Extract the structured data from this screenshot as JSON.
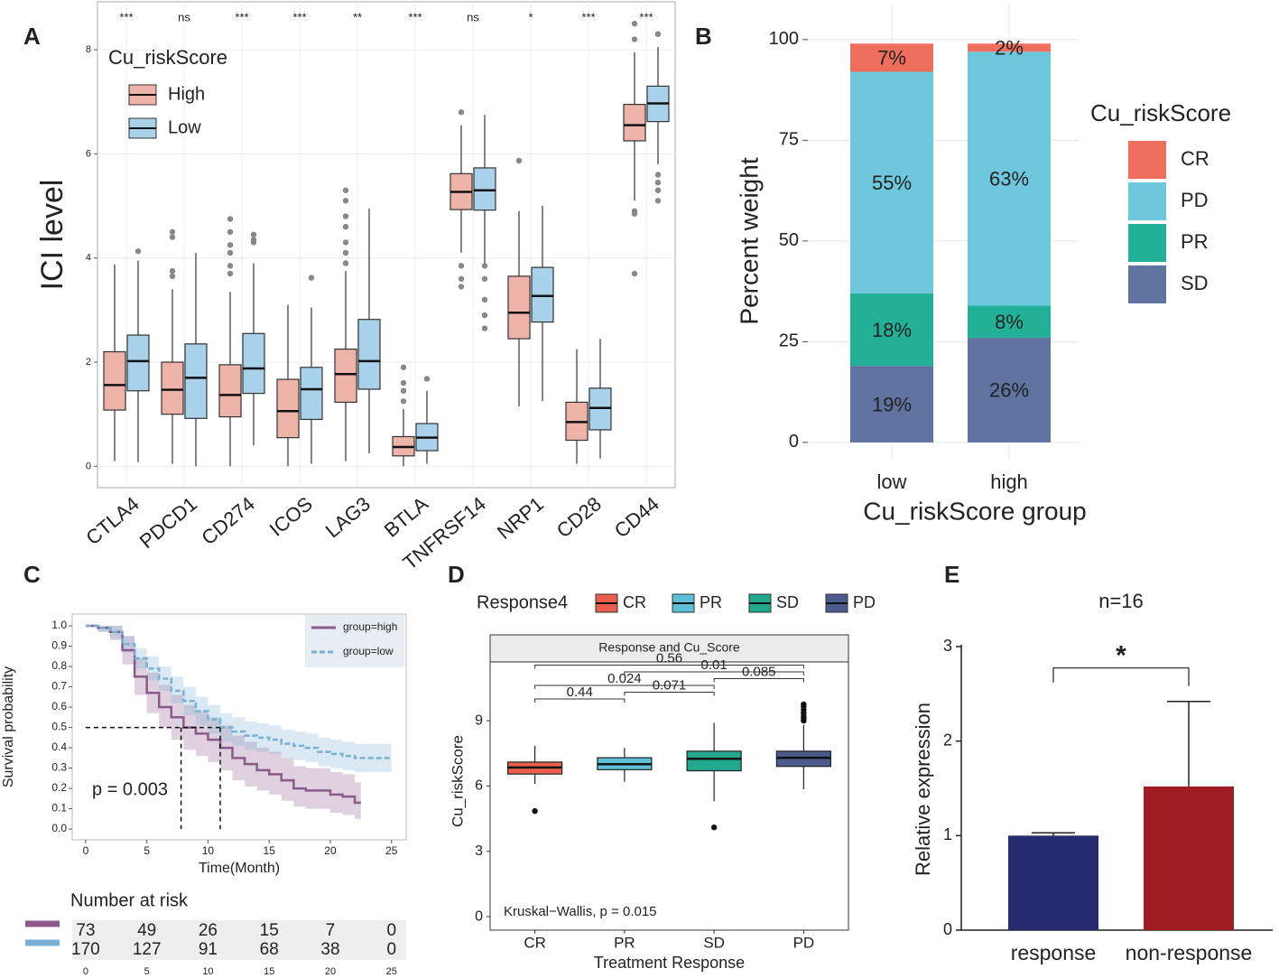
{
  "chart_data": [
    {
      "type": "boxplot",
      "panel": "A",
      "ylabel": "ICI level",
      "legend_title": "Cu_riskScore",
      "categories": [
        "CTLA4",
        "PDCD1",
        "CD274",
        "ICOS",
        "LAG3",
        "BTLA",
        "TNFRSF14",
        "NRP1",
        "CD28",
        "CD44"
      ],
      "annotations": [
        "***",
        "ns",
        "***",
        "***",
        "**",
        "***",
        "ns",
        "*",
        "***",
        "***"
      ],
      "ylim": [
        -0.41,
        8.92
      ],
      "yticks": [
        0,
        2,
        4,
        6,
        8
      ],
      "grid": true,
      "series": [
        {
          "name": "High",
          "color": "#eeb4a9",
          "boxes": [
            {
              "min": 0.1,
              "q1": 1.08,
              "median": 1.56,
              "q3": 2.2,
              "max": 3.88,
              "outliers": []
            },
            {
              "min": 0.05,
              "q1": 1.0,
              "median": 1.47,
              "q3": 2.0,
              "max": 3.4,
              "outliers": [
                3.65,
                3.75,
                4.4,
                4.5
              ]
            },
            {
              "min": 0,
              "q1": 0.95,
              "median": 1.37,
              "q3": 1.95,
              "max": 3.35,
              "outliers": [
                3.7,
                3.85,
                4.1,
                4.25,
                4.5,
                4.75
              ]
            },
            {
              "min": 0,
              "q1": 0.55,
              "median": 1.06,
              "q3": 1.67,
              "max": 3.1,
              "outliers": []
            },
            {
              "min": 0.1,
              "q1": 1.23,
              "median": 1.77,
              "q3": 2.25,
              "max": 3.75,
              "outliers": [
                3.9,
                4.1,
                4.3,
                4.6,
                4.8,
                5.1,
                5.3
              ]
            },
            {
              "min": 0,
              "q1": 0.2,
              "median": 0.37,
              "q3": 0.57,
              "max": 1.1,
              "outliers": [
                1.25,
                1.45,
                1.6,
                1.9
              ]
            },
            {
              "min": 4.1,
              "q1": 4.93,
              "median": 5.27,
              "q3": 5.62,
              "max": 6.55,
              "outliers": [
                3.45,
                3.6,
                3.85,
                6.8
              ]
            },
            {
              "min": 1.15,
              "q1": 2.45,
              "median": 2.95,
              "q3": 3.65,
              "max": 4.9,
              "outliers": [
                5.87
              ]
            },
            {
              "min": 0.05,
              "q1": 0.5,
              "median": 0.85,
              "q3": 1.23,
              "max": 2.25,
              "outliers": []
            },
            {
              "min": 5.1,
              "q1": 6.25,
              "median": 6.55,
              "q3": 6.95,
              "max": 7.95,
              "outliers": [
                3.7,
                4.85,
                4.9,
                8.2,
                8.5
              ]
            }
          ]
        },
        {
          "name": "Low",
          "color": "#a9d1ea",
          "boxes": [
            {
              "min": 0.08,
              "q1": 1.45,
              "median": 2.02,
              "q3": 2.52,
              "max": 3.95,
              "outliers": [
                4.13
              ]
            },
            {
              "min": 0,
              "q1": 0.92,
              "median": 1.7,
              "q3": 2.35,
              "max": 4.1,
              "outliers": []
            },
            {
              "min": 0.4,
              "q1": 1.4,
              "median": 1.88,
              "q3": 2.55,
              "max": 3.9,
              "outliers": [
                4.3,
                4.35,
                4.45
              ]
            },
            {
              "min": 0.05,
              "q1": 0.9,
              "median": 1.48,
              "q3": 1.9,
              "max": 3.05,
              "outliers": [
                3.62
              ]
            },
            {
              "min": 0.25,
              "q1": 1.48,
              "median": 2.02,
              "q3": 2.82,
              "max": 4.95,
              "outliers": []
            },
            {
              "min": 0.05,
              "q1": 0.3,
              "median": 0.55,
              "q3": 0.82,
              "max": 1.45,
              "outliers": [
                1.68
              ]
            },
            {
              "min": 3.9,
              "q1": 4.92,
              "median": 5.3,
              "q3": 5.73,
              "max": 6.75,
              "outliers": [
                2.65,
                2.9,
                3.2,
                3.6,
                3.85
              ]
            },
            {
              "min": 1.25,
              "q1": 2.77,
              "median": 3.27,
              "q3": 3.82,
              "max": 5.0,
              "outliers": []
            },
            {
              "min": 0.15,
              "q1": 0.7,
              "median": 1.12,
              "q3": 1.5,
              "max": 2.45,
              "outliers": []
            },
            {
              "min": 5.8,
              "q1": 6.62,
              "median": 6.97,
              "q3": 7.3,
              "max": 8.05,
              "outliers": [
                5.1,
                5.3,
                5.45,
                5.6,
                8.3
              ]
            }
          ]
        }
      ]
    },
    {
      "type": "stacked_bar",
      "panel": "B",
      "ylabel": "Percent weight",
      "xlabel": "Cu_riskScore group",
      "legend_title": "Cu_riskScore",
      "categories": [
        "low",
        "high"
      ],
      "ylim": [
        -4.5,
        108.7
      ],
      "yticks": [
        0,
        25,
        50,
        75,
        100
      ],
      "grid": true,
      "series": [
        {
          "name": "CR",
          "color": "#ef6f5e",
          "values": [
            7,
            2
          ],
          "value_labels": [
            "7%",
            "2%"
          ]
        },
        {
          "name": "PD",
          "color": "#6ec7dd",
          "values": [
            55,
            63
          ],
          "value_labels": [
            "55%",
            "63%"
          ]
        },
        {
          "name": "PR",
          "color": "#22b098",
          "values": [
            18,
            8
          ],
          "value_labels": [
            "18%",
            "8%"
          ]
        },
        {
          "name": "SD",
          "color": "#5e73a0",
          "values": [
            19,
            26
          ],
          "value_labels": [
            "19%",
            "26%"
          ]
        }
      ]
    },
    {
      "type": "km",
      "panel": "C",
      "xlabel": "Time(Month)",
      "ylabel": "Survival probability",
      "annotation": "p = 0.003",
      "xlim": [
        -1.1,
        26.2
      ],
      "ylim": [
        -0.053,
        1.058
      ],
      "xticks": [
        0,
        5,
        10,
        15,
        20,
        25
      ],
      "yticks": [
        {
          "value": 0,
          "label": "0.0"
        },
        0.1,
        0.2,
        0.3,
        0.4,
        0.5,
        0.6,
        0.7,
        0.8,
        0.9,
        {
          "value": 1,
          "label": "1.0"
        }
      ],
      "median_level": 0.5,
      "median_survival": [
        7.8,
        11
      ],
      "series": [
        {
          "name": "group=high",
          "color": "#8b5a8b",
          "x": [
            0,
            1,
            2,
            3,
            4,
            5,
            6,
            7,
            8,
            9,
            10,
            11,
            12,
            13,
            14,
            15,
            16,
            17,
            18,
            19,
            20,
            21,
            22,
            22.5
          ],
          "values": [
            1.0,
            0.99,
            0.97,
            0.88,
            0.75,
            0.67,
            0.6,
            0.55,
            0.5,
            0.47,
            0.44,
            0.4,
            0.35,
            0.32,
            0.29,
            0.27,
            0.24,
            0.2,
            0.19,
            0.19,
            0.17,
            0.16,
            0.13,
            0.13
          ],
          "lower": [
            1.0,
            0.97,
            0.93,
            0.81,
            0.66,
            0.57,
            0.5,
            0.44,
            0.39,
            0.36,
            0.33,
            0.29,
            0.24,
            0.21,
            0.19,
            0.17,
            0.14,
            0.11,
            0.1,
            0.1,
            0.08,
            0.07,
            0.05,
            0.05
          ],
          "upper": [
            1.0,
            1.0,
            1.0,
            0.95,
            0.84,
            0.77,
            0.71,
            0.66,
            0.61,
            0.58,
            0.55,
            0.51,
            0.46,
            0.43,
            0.4,
            0.38,
            0.35,
            0.31,
            0.3,
            0.3,
            0.28,
            0.27,
            0.23,
            0.23
          ]
        },
        {
          "name": "group=low",
          "color": "#79b0d3",
          "x": [
            0,
            1,
            2,
            3,
            4,
            5,
            6,
            7,
            8,
            9,
            10,
            11,
            12,
            13,
            14,
            15,
            16,
            17,
            18,
            19,
            20,
            21,
            22,
            25
          ],
          "values": [
            1.0,
            0.99,
            0.97,
            0.91,
            0.84,
            0.79,
            0.74,
            0.68,
            0.63,
            0.58,
            0.54,
            0.5,
            0.48,
            0.46,
            0.45,
            0.44,
            0.42,
            0.41,
            0.4,
            0.38,
            0.37,
            0.36,
            0.35,
            0.35
          ],
          "lower": [
            1.0,
            0.97,
            0.94,
            0.87,
            0.79,
            0.73,
            0.68,
            0.62,
            0.56,
            0.51,
            0.47,
            0.43,
            0.41,
            0.39,
            0.38,
            0.37,
            0.35,
            0.34,
            0.33,
            0.31,
            0.3,
            0.29,
            0.28,
            0.28
          ],
          "upper": [
            1.0,
            1.0,
            1.0,
            0.95,
            0.89,
            0.85,
            0.8,
            0.75,
            0.7,
            0.65,
            0.61,
            0.57,
            0.55,
            0.53,
            0.52,
            0.51,
            0.49,
            0.48,
            0.47,
            0.45,
            0.44,
            0.43,
            0.42,
            0.42
          ]
        }
      ],
      "risk_table": {
        "title": "Number at risk",
        "rows": [
          [
            73,
            49,
            26,
            15,
            7,
            0
          ],
          [
            170,
            127,
            91,
            68,
            38,
            0
          ]
        ]
      }
    },
    {
      "type": "boxplot",
      "panel": "D",
      "legend_title": "Response4",
      "strip_title": "Response and Cu_Score",
      "ylabel": "Cu_riskScore",
      "xlabel": "Treatment Response",
      "annotation": "Kruskal−Wallis, p = 0.015",
      "categories": [
        "CR",
        "PR",
        "SD",
        "PD"
      ],
      "colors": [
        "#e8604c",
        "#5ec0d8",
        "#21a88f",
        "#4a5b8c"
      ],
      "ylim": [
        -0.62,
        11.7
      ],
      "yticks": [
        0,
        3,
        6,
        9
      ],
      "boxes": [
        {
          "min": 6.1,
          "q1": 6.55,
          "median": 6.85,
          "q3": 7.1,
          "max": 7.85,
          "outliers": [
            4.85
          ]
        },
        {
          "min": 6.2,
          "q1": 6.75,
          "median": 7.0,
          "q3": 7.3,
          "max": 7.75,
          "outliers": []
        },
        {
          "min": 5.3,
          "q1": 6.7,
          "median": 7.25,
          "q3": 7.6,
          "max": 8.9,
          "outliers": [
            4.1
          ]
        },
        {
          "min": 5.85,
          "q1": 6.9,
          "median": 7.3,
          "q3": 7.6,
          "max": 8.8,
          "outliers": [
            9.0,
            9.1,
            9.2,
            9.35,
            9.5,
            9.65,
            9.75
          ]
        }
      ],
      "comparisons": [
        {
          "groups": [
            "CR",
            "PR"
          ],
          "label": "0.44"
        },
        {
          "groups": [
            "PR",
            "SD"
          ],
          "label": "0.071"
        },
        {
          "groups": [
            "CR",
            "SD"
          ],
          "label": "0.024"
        },
        {
          "groups": [
            "SD",
            "PD"
          ],
          "label": "0.085"
        },
        {
          "groups": [
            "PR",
            "PD"
          ],
          "label": "0.01"
        },
        {
          "groups": [
            "CR",
            "PD"
          ],
          "label": "0.56"
        }
      ]
    },
    {
      "type": "bar",
      "panel": "E",
      "title": "n=16",
      "ylabel": "Relative expression",
      "annotation": "*",
      "categories": [
        "response",
        "non-response"
      ],
      "values": [
        1.0,
        1.52
      ],
      "errors": [
        0.03,
        0.9
      ],
      "colors": [
        "#262a6e",
        "#9e1c22"
      ],
      "ylim": [
        0,
        3.0
      ],
      "yticks": [
        0,
        1,
        2,
        3
      ]
    }
  ]
}
